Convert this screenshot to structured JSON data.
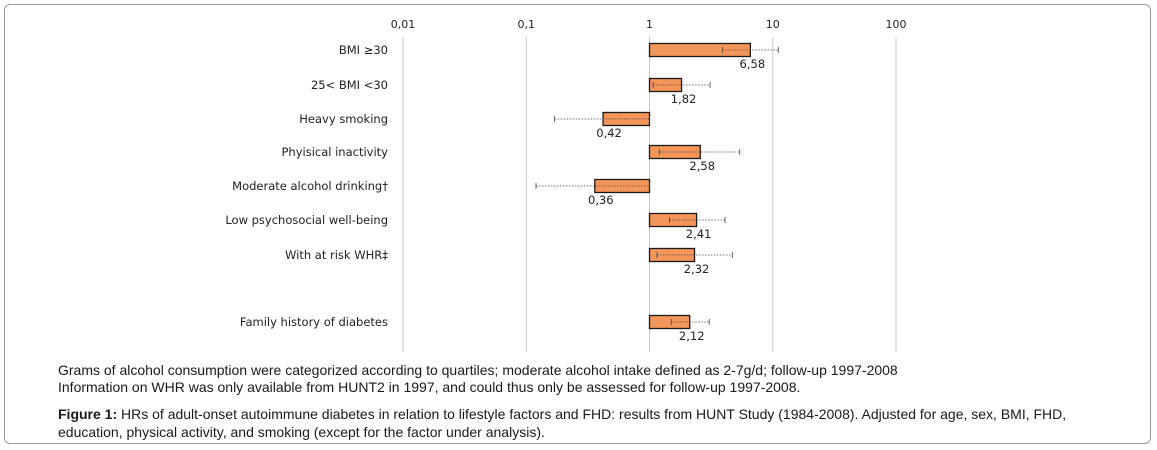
{
  "chart_data": {
    "type": "bar",
    "scale": "log",
    "ticks": [
      0.01,
      0.1,
      1,
      10,
      100
    ],
    "tick_labels": [
      "0,01",
      "0,1",
      "1",
      "10",
      "100"
    ],
    "grid": true,
    "bar_color": "#f4955a",
    "categories": [
      "BMI ≥30",
      "25< BMI <30",
      "Heavy smoking",
      "Phyisical inactivity",
      "Moderate alcohol drinking†",
      "Low psychosocial well-being",
      "With at risk WHR‡",
      "Family history of diabetes"
    ],
    "values": [
      6.58,
      1.82,
      0.42,
      2.58,
      0.36,
      2.41,
      2.32,
      2.12
    ],
    "value_labels": [
      "6,58",
      "1,82",
      "0,42",
      "2,58",
      "0,36",
      "2,41",
      "2,32",
      "2,12"
    ],
    "ci_lower": [
      3.9,
      1.07,
      0.17,
      1.2,
      0.12,
      1.45,
      1.15,
      1.5
    ],
    "ci_upper": [
      11.1,
      3.1,
      1.0,
      5.4,
      1.0,
      4.1,
      4.7,
      3.05
    ]
  },
  "notes": [
    "Grams of alcohol consumption were categorized according to quartiles; moderate alcohol intake defined as 2-7g/d; follow-up 1997-2008",
    "Information on WHR was only available from HUNT2 in 1997, and could thus only be assessed for follow-up 1997-2008."
  ],
  "caption": {
    "label": "Figure 1:",
    "text": " HRs of adult-onset autoimmune diabetes in relation to lifestyle factors and FHD: results from HUNT Study (1984-2008). Adjusted for age, sex, BMI, FHD, education, physical activity, and smoking (except for the factor under analysis)."
  }
}
